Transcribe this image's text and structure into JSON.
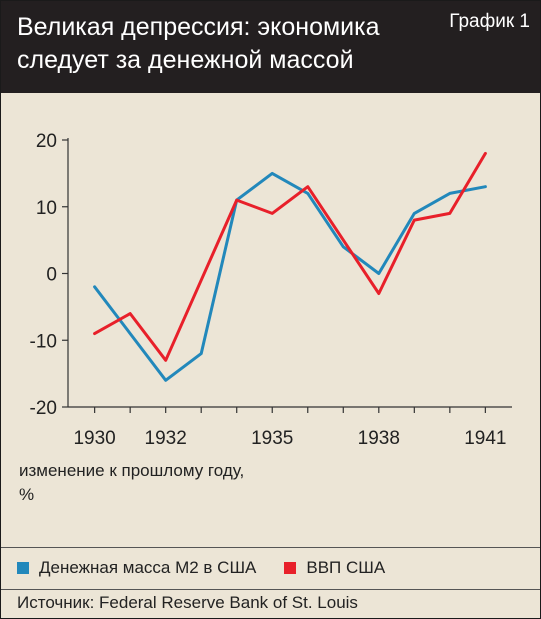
{
  "header": {
    "title_line1": "Великая депрессия: экономика",
    "title_line2": "следует за денежной массой",
    "graph_label": "График 1"
  },
  "colors": {
    "m2": "#2288bb",
    "gdp": "#e8202a",
    "header_bg": "#231f20",
    "panel_bg": "#ece5d6"
  },
  "chart_data": {
    "type": "line",
    "title": "Великая депрессия: экономика следует за денежной массой",
    "x": [
      1930,
      1931,
      1932,
      1933,
      1934,
      1935,
      1936,
      1937,
      1938,
      1939,
      1940,
      1941
    ],
    "xticks": [
      1930,
      1932,
      1935,
      1938,
      1941
    ],
    "yticks": [
      20,
      10,
      0,
      -10,
      -20
    ],
    "ylim": [
      -20,
      20
    ],
    "xlim": [
      1929.25,
      1941.75
    ],
    "grid": false,
    "ylabel": "изменение к прошлому году, %",
    "xlabel": "",
    "legend_position": "bottom",
    "series": [
      {
        "name": "Денежная масса М2 в США",
        "color": "#2288bb",
        "values": [
          -2,
          -9,
          -16,
          -12,
          11,
          15,
          12,
          4,
          0,
          9,
          12,
          13
        ]
      },
      {
        "name": "ВВП США",
        "color": "#e8202a",
        "values": [
          -9,
          -6,
          -13,
          -1,
          11,
          9,
          13,
          5,
          -3,
          8,
          9,
          18
        ]
      }
    ]
  },
  "unit_label": {
    "line1": "изменение к прошлому году,",
    "line2": "%"
  },
  "legend": {
    "m2_label": "Денежная масса М2 в США",
    "gdp_label": "ВВП США"
  },
  "source": "Источник: Federal Reserve Bank of St. Louis"
}
